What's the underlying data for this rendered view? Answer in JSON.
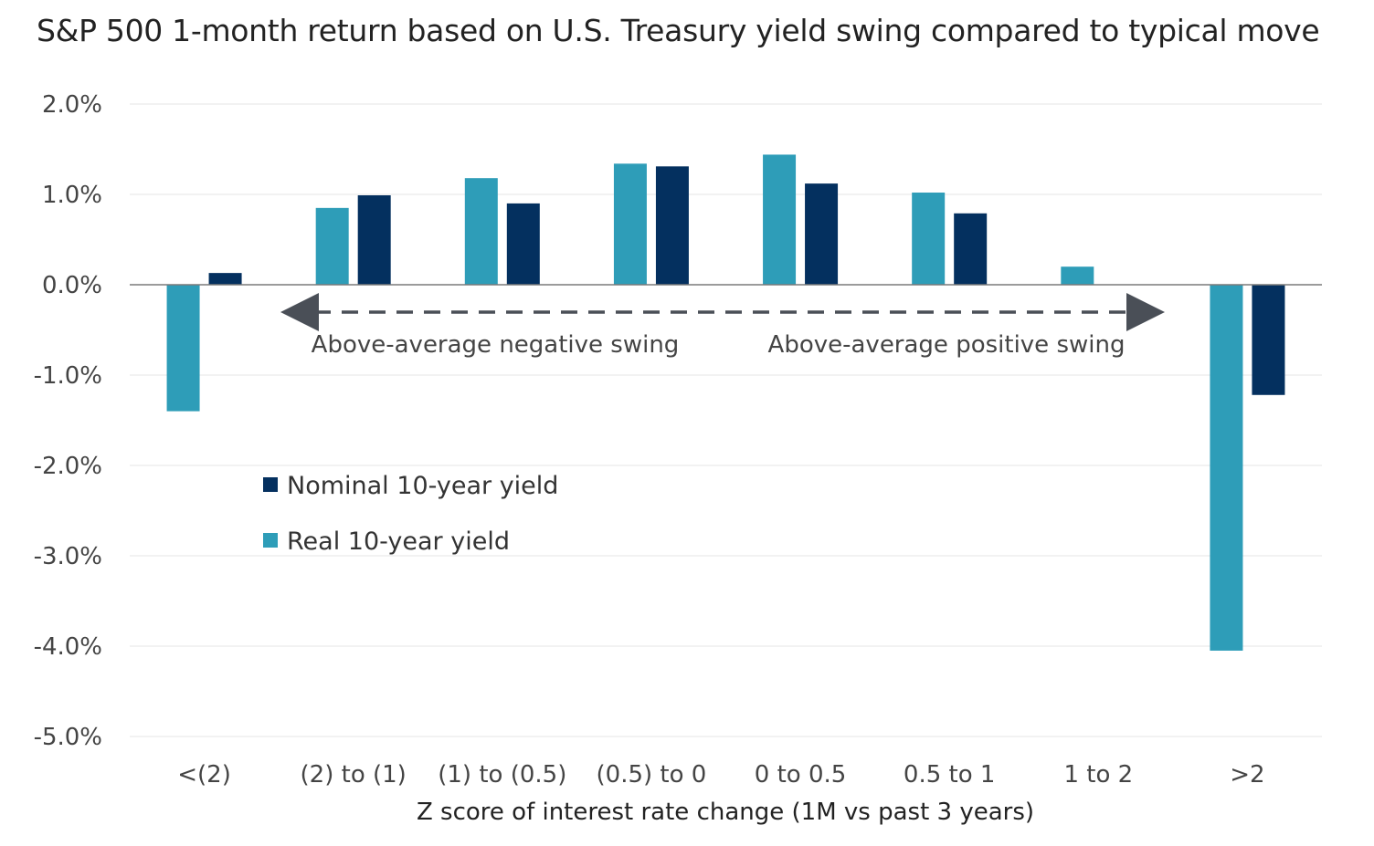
{
  "chart_data": {
    "type": "bar",
    "title": "S&P 500 1-month return based on U.S. Treasury yield swing compared to typical move",
    "xlabel": "Z score of interest rate change (1M vs past 3 years)",
    "ylabel": "",
    "ylim": [
      -5.0,
      2.0
    ],
    "yticks": [
      "2.0%",
      "1.0%",
      "0.0%",
      "-1.0%",
      "-2.0%",
      "-3.0%",
      "-4.0%",
      "-5.0%"
    ],
    "grid": true,
    "categories": [
      "<(2)",
      "(2) to (1)",
      "(1) to (0.5)",
      "(0.5) to 0",
      "0 to 0.5",
      "0.5 to 1",
      "1 to 2",
      ">2"
    ],
    "series": [
      {
        "name": "Real 10-year yield",
        "color": "#2e9db8",
        "values": [
          -1.4,
          0.85,
          1.18,
          1.34,
          1.44,
          1.02,
          0.2,
          -4.05
        ]
      },
      {
        "name": "Nominal 10-year yield",
        "color": "#04305f",
        "values": [
          0.13,
          0.99,
          0.9,
          1.31,
          1.12,
          0.79,
          0.0,
          -1.22
        ]
      }
    ],
    "legend": {
      "placement": "lower-left",
      "items": [
        "Nominal 10-year yield",
        "Real 10-year yield"
      ]
    },
    "annotations": {
      "negative": "Above-average negative swing",
      "positive": "Above-average positive swing"
    }
  }
}
